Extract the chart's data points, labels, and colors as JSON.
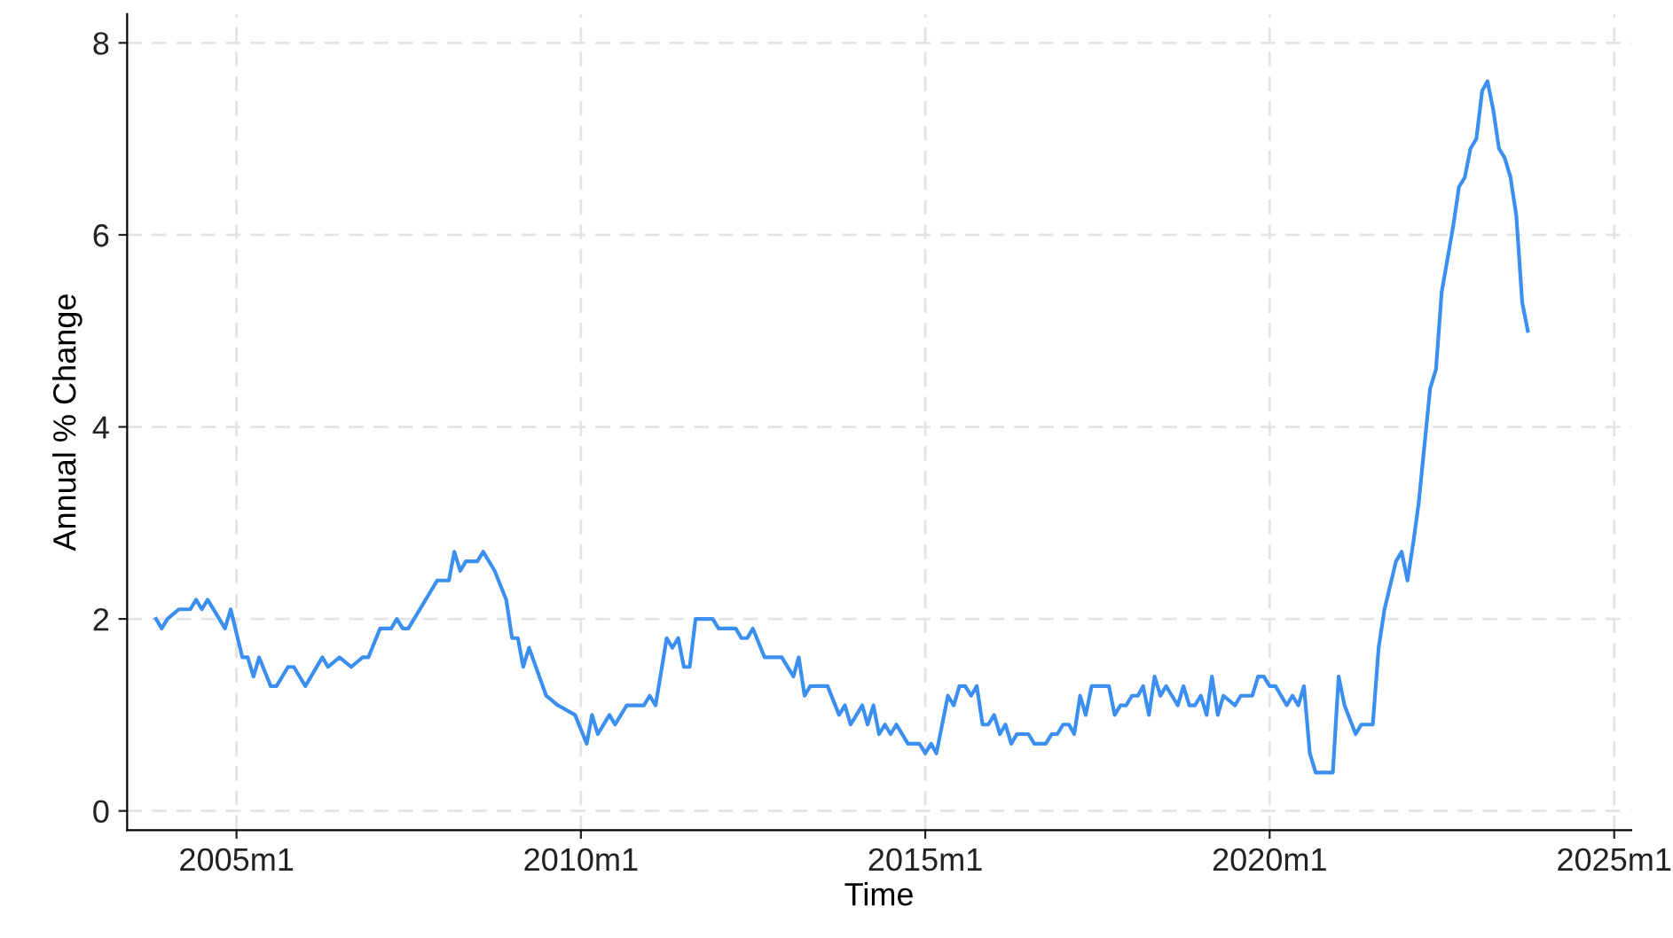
{
  "chart_data": {
    "type": "line",
    "xlabel": "Time",
    "ylabel": "Annual % Change",
    "xlim": [
      "2003-06",
      "2025-04"
    ],
    "ylim": [
      -0.2,
      8.3
    ],
    "xticks": [
      {
        "value": "2005-01",
        "label": "2005m1"
      },
      {
        "value": "2010-01",
        "label": "2010m1"
      },
      {
        "value": "2015-01",
        "label": "2015m1"
      },
      {
        "value": "2020-01",
        "label": "2020m1"
      },
      {
        "value": "2025-01",
        "label": "2025m1"
      }
    ],
    "yticks": [
      0,
      2,
      4,
      6,
      8
    ],
    "grid": true,
    "marker": "none",
    "line_style": "solid",
    "series": [
      {
        "color": "#3a8ff0",
        "x": [
          "2003-11",
          "2003-12",
          "2004-01",
          "2004-03",
          "2004-05",
          "2004-06",
          "2004-07",
          "2004-08",
          "2004-11",
          "2004-12",
          "2005-02",
          "2005-03",
          "2005-04",
          "2005-05",
          "2005-07",
          "2005-08",
          "2005-10",
          "2005-11",
          "2006-01",
          "2006-04",
          "2006-05",
          "2006-07",
          "2006-09",
          "2006-11",
          "2006-12",
          "2007-02",
          "2007-04",
          "2007-05",
          "2007-06",
          "2007-07",
          "2007-12",
          "2008-02",
          "2008-03",
          "2008-04",
          "2008-05",
          "2008-07",
          "2008-08",
          "2008-10",
          "2008-12",
          "2009-01",
          "2009-02",
          "2009-03",
          "2009-04",
          "2009-07",
          "2009-09",
          "2009-12",
          "2010-02",
          "2010-03",
          "2010-04",
          "2010-06",
          "2010-07",
          "2010-09",
          "2010-12",
          "2011-01",
          "2011-02",
          "2011-04",
          "2011-05",
          "2011-06",
          "2011-07",
          "2011-08",
          "2011-09",
          "2011-12",
          "2012-01",
          "2012-04",
          "2012-05",
          "2012-06",
          "2012-07",
          "2012-09",
          "2012-12",
          "2013-02",
          "2013-03",
          "2013-04",
          "2013-05",
          "2013-08",
          "2013-10",
          "2013-11",
          "2013-12",
          "2014-02",
          "2014-03",
          "2014-04",
          "2014-05",
          "2014-06",
          "2014-07",
          "2014-08",
          "2014-10",
          "2014-12",
          "2015-01",
          "2015-02",
          "2015-03",
          "2015-05",
          "2015-06",
          "2015-07",
          "2015-08",
          "2015-09",
          "2015-10",
          "2015-11",
          "2015-12",
          "2016-01",
          "2016-02",
          "2016-03",
          "2016-04",
          "2016-05",
          "2016-07",
          "2016-08",
          "2016-10",
          "2016-11",
          "2016-12",
          "2017-01",
          "2017-02",
          "2017-03",
          "2017-04",
          "2017-05",
          "2017-06",
          "2017-09",
          "2017-10",
          "2017-11",
          "2017-12",
          "2018-01",
          "2018-02",
          "2018-03",
          "2018-04",
          "2018-05",
          "2018-06",
          "2018-07",
          "2018-08",
          "2018-09",
          "2018-10",
          "2018-11",
          "2018-12",
          "2019-01",
          "2019-02",
          "2019-03",
          "2019-04",
          "2019-05",
          "2019-07",
          "2019-08",
          "2019-10",
          "2019-11",
          "2019-12",
          "2020-01",
          "2020-02",
          "2020-04",
          "2020-05",
          "2020-06",
          "2020-07",
          "2020-08",
          "2020-09",
          "2020-12",
          "2021-01",
          "2021-02",
          "2021-04",
          "2021-05",
          "2021-07",
          "2021-08",
          "2021-09",
          "2021-11",
          "2021-12",
          "2022-01",
          "2022-02",
          "2022-03",
          "2022-05",
          "2022-06",
          "2022-07",
          "2022-09",
          "2022-10",
          "2022-11",
          "2022-12",
          "2023-01",
          "2023-02",
          "2023-03",
          "2023-04",
          "2023-05",
          "2023-06",
          "2023-07",
          "2023-08",
          "2023-09",
          "2023-10"
        ],
        "values": [
          2.0,
          1.9,
          2.0,
          2.1,
          2.1,
          2.2,
          2.1,
          2.2,
          1.9,
          2.1,
          1.6,
          1.6,
          1.4,
          1.6,
          1.3,
          1.3,
          1.5,
          1.5,
          1.3,
          1.6,
          1.5,
          1.6,
          1.5,
          1.6,
          1.6,
          1.9,
          1.9,
          2.0,
          1.9,
          1.9,
          2.4,
          2.4,
          2.7,
          2.5,
          2.6,
          2.6,
          2.7,
          2.5,
          2.2,
          1.8,
          1.8,
          1.5,
          1.7,
          1.2,
          1.1,
          1.0,
          0.7,
          1.0,
          0.8,
          1.0,
          0.9,
          1.1,
          1.1,
          1.2,
          1.1,
          1.8,
          1.7,
          1.8,
          1.5,
          1.5,
          2.0,
          2.0,
          1.9,
          1.9,
          1.8,
          1.8,
          1.9,
          1.6,
          1.6,
          1.4,
          1.6,
          1.2,
          1.3,
          1.3,
          1.0,
          1.1,
          0.9,
          1.1,
          0.9,
          1.1,
          0.8,
          0.9,
          0.8,
          0.9,
          0.7,
          0.7,
          0.6,
          0.7,
          0.6,
          1.2,
          1.1,
          1.3,
          1.3,
          1.2,
          1.3,
          0.9,
          0.9,
          1.0,
          0.8,
          0.9,
          0.7,
          0.8,
          0.8,
          0.7,
          0.7,
          0.8,
          0.8,
          0.9,
          0.9,
          0.8,
          1.2,
          1.0,
          1.3,
          1.3,
          1.0,
          1.1,
          1.1,
          1.2,
          1.2,
          1.3,
          1.0,
          1.4,
          1.2,
          1.3,
          1.2,
          1.1,
          1.3,
          1.1,
          1.1,
          1.2,
          1.0,
          1.4,
          1.0,
          1.2,
          1.1,
          1.2,
          1.2,
          1.4,
          1.4,
          1.3,
          1.3,
          1.1,
          1.2,
          1.1,
          1.3,
          0.6,
          0.4,
          0.4,
          1.4,
          1.1,
          0.8,
          0.9,
          0.9,
          1.7,
          2.1,
          2.6,
          2.7,
          2.4,
          2.8,
          3.2,
          4.4,
          4.6,
          5.4,
          6.1,
          6.5,
          6.6,
          6.9,
          7.0,
          7.5,
          7.6,
          7.3,
          6.9,
          6.8,
          6.6,
          6.2,
          5.3,
          5.0
        ]
      }
    ]
  }
}
